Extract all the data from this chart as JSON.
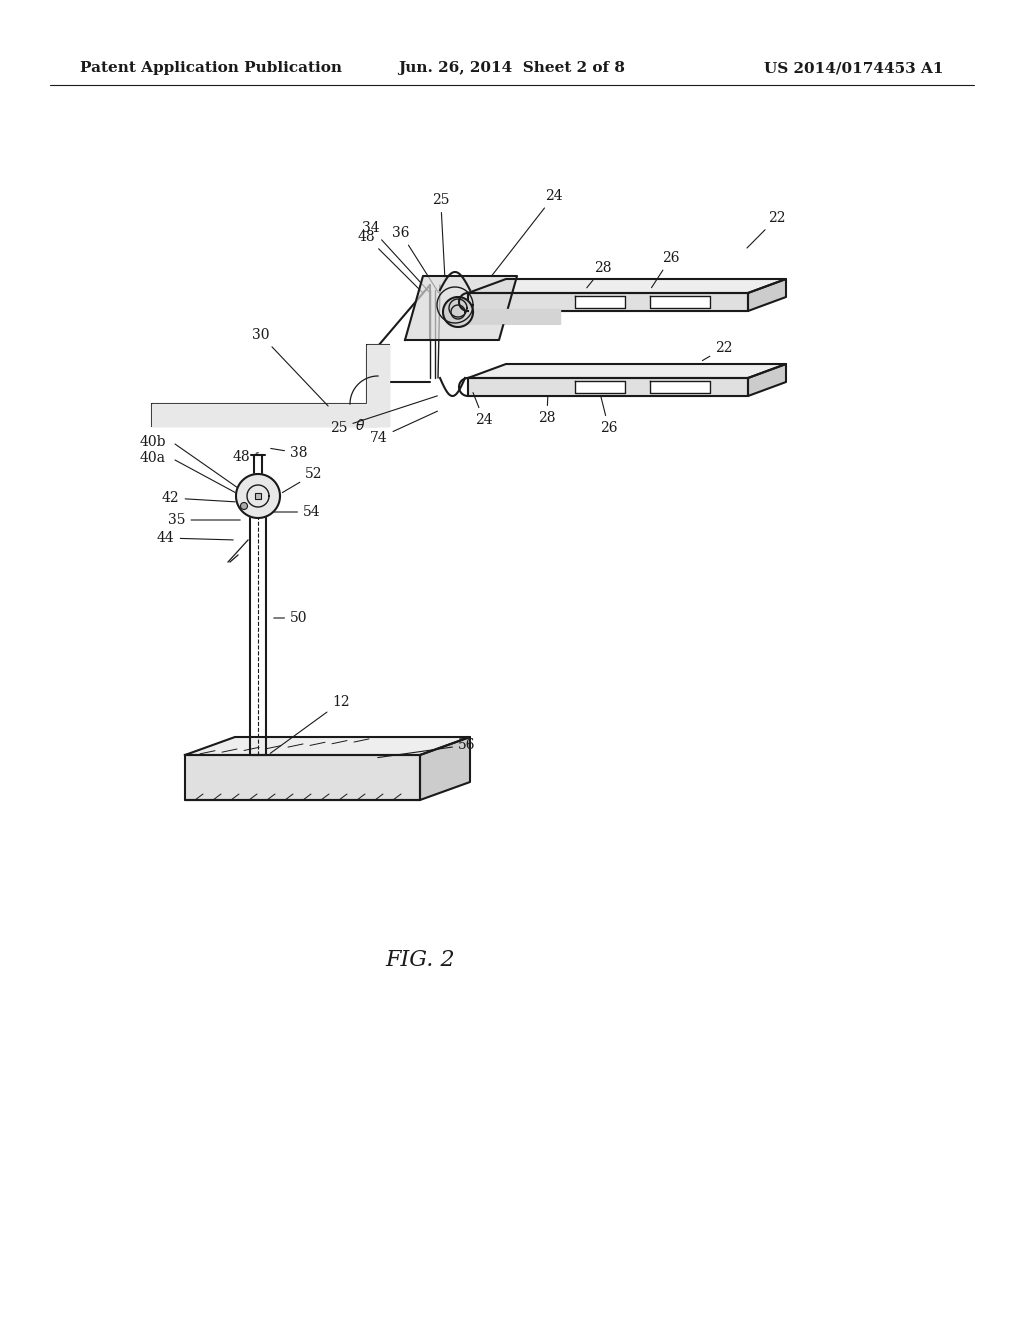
{
  "title": "FIG. 2",
  "header_left": "Patent Application Publication",
  "header_center": "Jun. 26, 2014  Sheet 2 of 8",
  "header_right": "US 2014/0174453 A1",
  "bg_color": "#ffffff",
  "line_color": "#1a1a1a",
  "text_color": "#1a1a1a",
  "header_fontsize": 11,
  "title_fontsize": 16
}
